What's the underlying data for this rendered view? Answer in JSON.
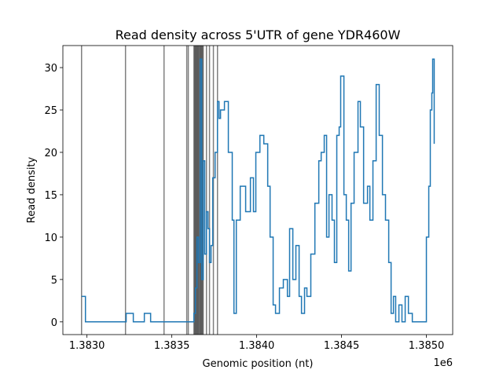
{
  "chart_data": {
    "type": "step",
    "title": "Read density across 5'UTR of gene YDR460W",
    "xlabel": "Genomic position (nt)",
    "ylabel": "Read density",
    "x_offset_label": "1e6",
    "xlim": [
      1382858,
      1385155
    ],
    "ylim": [
      -1.5,
      32.6
    ],
    "xticks": [
      {
        "value": 1383000,
        "label": "1.3830"
      },
      {
        "value": 1383500,
        "label": "1.3835"
      },
      {
        "value": 1384000,
        "label": "1.3840"
      },
      {
        "value": 1384500,
        "label": "1.3845"
      },
      {
        "value": 1385000,
        "label": "1.3850"
      }
    ],
    "yticks": [
      0,
      5,
      10,
      15,
      20,
      25,
      30
    ],
    "vlines_color": "#000000",
    "vlines": [
      1382968,
      1383227,
      1383454,
      1383588,
      1383597,
      1383630,
      1383635,
      1383639,
      1383644,
      1383648,
      1383653,
      1383657,
      1383662,
      1383667,
      1383671,
      1383676,
      1383680,
      1383685,
      1383704,
      1383722,
      1383745,
      1383769
    ],
    "series": [
      {
        "color": "#1f77b4",
        "x": [
          1382968,
          1382991,
          1383231,
          1383273,
          1383338,
          1383375,
          1383630,
          1383639,
          1383648,
          1383657,
          1383667,
          1383676,
          1383685,
          1383694,
          1383704,
          1383713,
          1383722,
          1383731,
          1383741,
          1383755,
          1383769,
          1383778,
          1383787,
          1383810,
          1383833,
          1383856,
          1383866,
          1383880,
          1383903,
          1383935,
          1383963,
          1383981,
          1383995,
          1384019,
          1384042,
          1384065,
          1384079,
          1384097,
          1384111,
          1384134,
          1384157,
          1384181,
          1384194,
          1384213,
          1384231,
          1384250,
          1384264,
          1384282,
          1384296,
          1384319,
          1384343,
          1384366,
          1384380,
          1384398,
          1384412,
          1384426,
          1384444,
          1384458,
          1384472,
          1384486,
          1384495,
          1384514,
          1384528,
          1384542,
          1384556,
          1384574,
          1384597,
          1384611,
          1384630,
          1384653,
          1384667,
          1384685,
          1384704,
          1384722,
          1384741,
          1384759,
          1384778,
          1384792,
          1384806,
          1384819,
          1384838,
          1384856,
          1384875,
          1384894,
          1384917,
          1384991,
          1385000,
          1385014,
          1385023,
          1385032,
          1385037,
          1385046
        ],
        "values": [
          3,
          0,
          1,
          0,
          1,
          0,
          1,
          4,
          10,
          7,
          31,
          5,
          19,
          8,
          13,
          11,
          7,
          9,
          17,
          20,
          26,
          24,
          25,
          26,
          20,
          12,
          1,
          12,
          16,
          13,
          17,
          13,
          20,
          22,
          21,
          16,
          10,
          2,
          1,
          4,
          5,
          3,
          11,
          5,
          9,
          3,
          1,
          4,
          3,
          8,
          14,
          19,
          20,
          22,
          10,
          15,
          12,
          7,
          22,
          23,
          29,
          15,
          12,
          6,
          14,
          20,
          26,
          23,
          14,
          16,
          12,
          19,
          28,
          22,
          15,
          12,
          7,
          1,
          3,
          0,
          2,
          0,
          3,
          1,
          0,
          0,
          10,
          16,
          25,
          27,
          31,
          21
        ]
      }
    ]
  }
}
